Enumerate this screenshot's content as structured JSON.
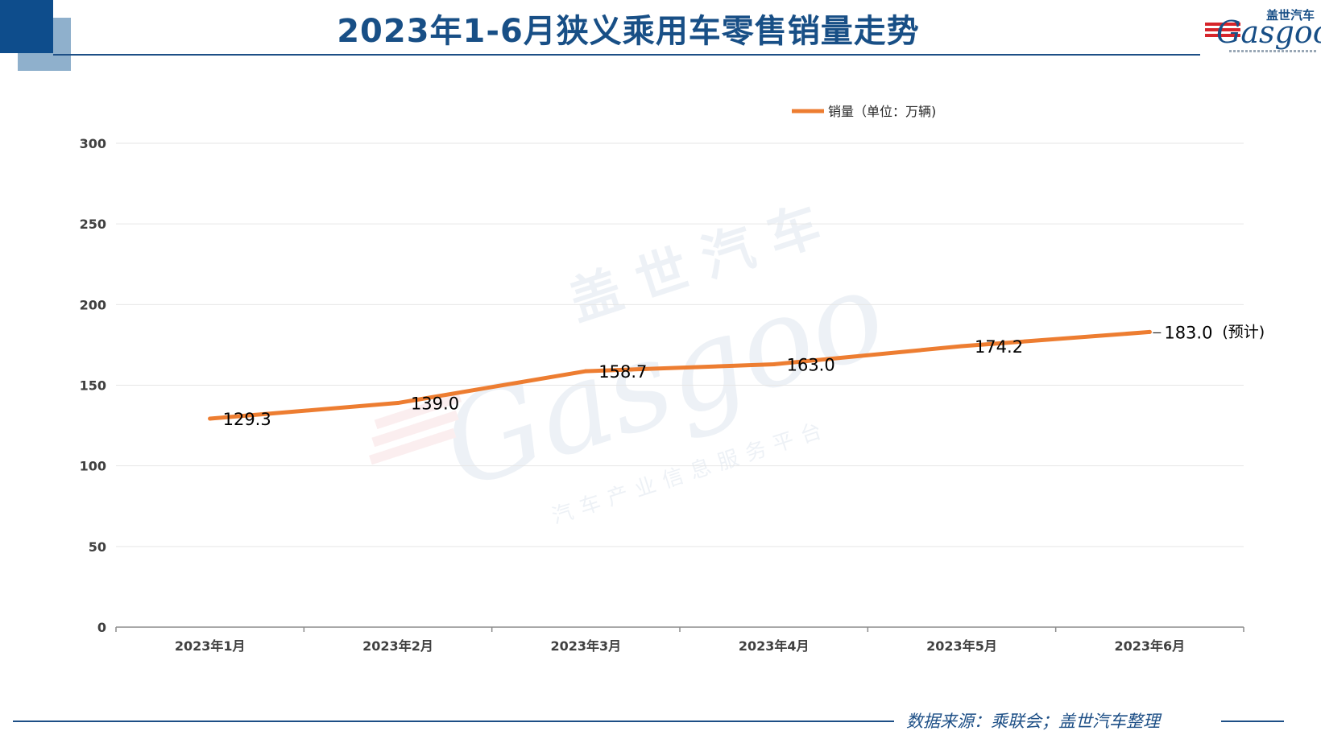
{
  "header": {
    "title": "2023年1-6月狭义乘用车零售销量走势",
    "logo_cn": "盖世汽车",
    "logo_en": "Gasgoo"
  },
  "colors": {
    "line": "#ed7d31",
    "title": "#184f86",
    "accent_dark": "#0e4d8c",
    "accent_light": "#8fb0cc",
    "gridline": "#e6e6e6"
  },
  "watermark": {
    "cn": "盖世汽车",
    "en": "Gasgoo",
    "sub": "汽车产业信息服务平台"
  },
  "footer": {
    "source": "数据来源：乘联会；盖世汽车整理"
  },
  "chart_data": {
    "type": "line",
    "title": "",
    "xlabel": "",
    "ylabel": "",
    "categories": [
      "2023年1月",
      "2023年2月",
      "2023年3月",
      "2023年4月",
      "2023年5月",
      "2023年6月"
    ],
    "series": [
      {
        "name": "销量（单位：万辆)",
        "values": [
          129.3,
          139.0,
          158.7,
          163.0,
          174.2,
          183.0
        ],
        "labels": [
          "129.3",
          "139.0",
          "158.7",
          "163.0",
          "174.2",
          "183.0"
        ],
        "color": "#ed7d31"
      }
    ],
    "annotations": [
      {
        "category": "2023年6月",
        "text": "(预计)"
      }
    ],
    "ylim": [
      0,
      300
    ],
    "yticks": [
      0,
      50,
      100,
      150,
      200,
      250,
      300
    ],
    "grid": true,
    "legend": "top"
  }
}
